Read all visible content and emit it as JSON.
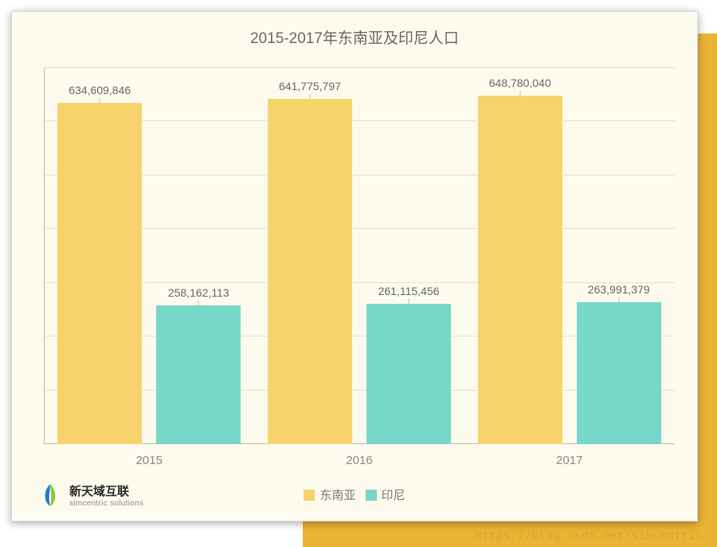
{
  "chart": {
    "type": "bar-grouped",
    "title": "2015-2017年东南亚及印尼人口",
    "title_fontsize": 19,
    "title_color": "#666666",
    "canvas": {
      "background": "#fdfbee",
      "border_color": "#d9d9d9",
      "accent_color": "#eab334"
    },
    "categories": [
      "2015",
      "2016",
      "2017"
    ],
    "series": [
      {
        "name": "东南亚",
        "color": "#f7d36b",
        "values": [
          634609846,
          641775797,
          648780040
        ]
      },
      {
        "name": "印尼",
        "color": "#77d7c9",
        "values": [
          258162113,
          261115456,
          263991379
        ]
      }
    ],
    "data_labels": {
      "s0": [
        "634,609,846",
        "641,775,797",
        "648,780,040"
      ],
      "s1": [
        "258,162,113",
        "261,115,456",
        "263,991,379"
      ],
      "fontsize": 14,
      "color": "#666666"
    },
    "y_axis": {
      "min": 0,
      "max": 700000000,
      "gridline_count": 7,
      "gridline_color": "#e7e0c6",
      "axis_color": "#bfb99a",
      "show_tick_labels": false
    },
    "x_axis": {
      "label_fontsize": 15,
      "label_color": "#888888",
      "axis_color": "#bfb99a"
    },
    "layout": {
      "group_width_pct": 29,
      "group_gap_pct": 4.3,
      "bar_width_pct_of_group": 46,
      "bar_gap_pct_of_group": 8
    },
    "legend": {
      "fontsize": 15,
      "color": "#777777",
      "swatch_size": 14
    }
  },
  "branding": {
    "logo_cn": "新天域互联",
    "logo_en": "simcentric solutions",
    "logo_cn_fontsize": 15,
    "logo_en_fontsize": 10,
    "logo_primary": "#1b7fc4",
    "logo_secondary": "#8cc63f"
  },
  "watermark": {
    "text": "https://blog.csdn.net/simcentric",
    "fontsize": 14
  }
}
